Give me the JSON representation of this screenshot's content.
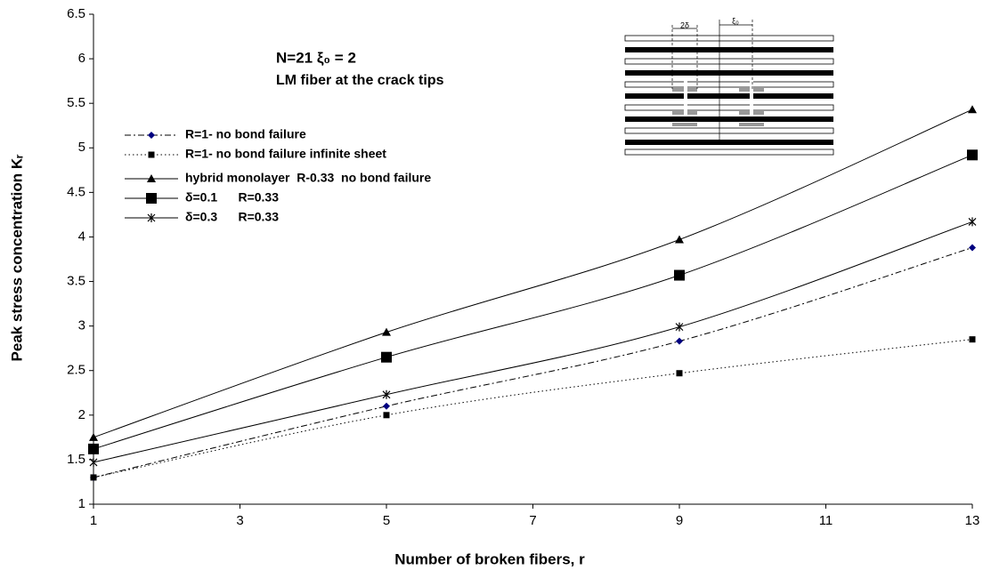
{
  "chart_data": {
    "type": "line",
    "y_label": "Peak stress concentration Kᵣ",
    "x_label": "Number of broken fibers, r",
    "annotations": [
      "N=21   ξ₀ = 2",
      "LM fiber at the crack tips"
    ],
    "inset_labels": [
      "2δ",
      "ξ₀"
    ],
    "x": [
      1,
      5,
      9,
      13
    ],
    "xlim": [
      1,
      13
    ],
    "xticks": [
      1,
      3,
      5,
      7,
      9,
      11,
      13
    ],
    "ylim": [
      1,
      6.5
    ],
    "yticks": [
      1,
      1.5,
      2,
      2.5,
      3,
      3.5,
      4,
      4.5,
      5,
      5.5,
      6,
      6.5
    ],
    "grid": false,
    "series": [
      {
        "name": "R=1- no bond failure",
        "color": "#000080",
        "line_color": "#000000",
        "marker": "diamond",
        "linestyle": "dashdot",
        "values": [
          1.3,
          2.1,
          2.83,
          3.88
        ]
      },
      {
        "name": "R=1- no bond failure infinite sheet",
        "color": "#000000",
        "line_color": "#000000",
        "marker": "small-square",
        "linestyle": "dotted",
        "values": [
          1.3,
          2.0,
          2.47,
          2.85
        ]
      },
      {
        "name": "hybrid monolayer  R-0.33  no bond failure",
        "color": "#000000",
        "line_color": "#000000",
        "marker": "triangle",
        "linestyle": "solid",
        "values": [
          1.75,
          2.93,
          3.97,
          5.43
        ]
      },
      {
        "name": "δ=0.1      R=0.33",
        "color": "#000000",
        "line_color": "#000000",
        "marker": "square",
        "linestyle": "solid",
        "values": [
          1.62,
          2.65,
          3.57,
          4.92
        ]
      },
      {
        "name": "δ=0.3      R=0.33",
        "color": "#000000",
        "line_color": "#000000",
        "marker": "star",
        "linestyle": "solid",
        "values": [
          1.47,
          2.23,
          2.99,
          4.17
        ]
      }
    ]
  }
}
